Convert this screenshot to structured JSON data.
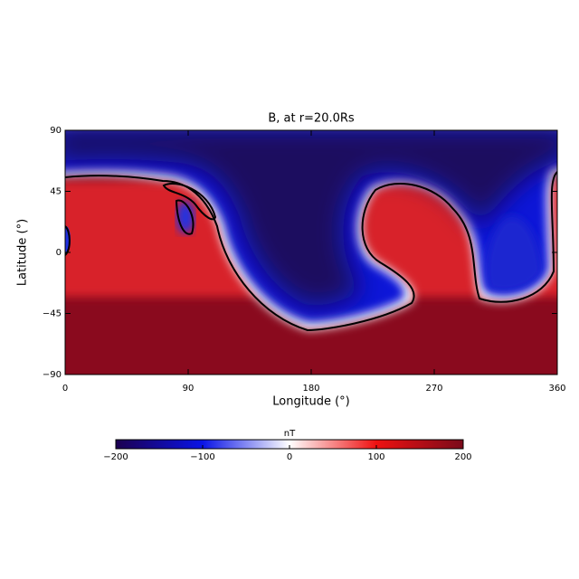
{
  "chart_data": {
    "type": "heatmap",
    "title": "B, at r=20.0Rs",
    "x_label": "Longitude (°)",
    "y_label": "Latitude (°)",
    "xlim": [
      0,
      360
    ],
    "ylim": [
      -90,
      90
    ],
    "xticks": [
      0,
      90,
      180,
      270,
      360
    ],
    "yticks": [
      90,
      45,
      0,
      {
        "value": -45,
        "label": "−45"
      },
      {
        "value": -90,
        "label": "−90"
      }
    ],
    "colorbar": {
      "label": "nT",
      "lim": [
        -200,
        200
      ],
      "ticks": [
        {
          "value": -200,
          "label": "−200"
        },
        {
          "value": -100,
          "label": "−100"
        },
        0,
        100,
        200
      ],
      "colors": [
        "#1c0050",
        "#0a14e6",
        "#ffffff",
        "#ee1111",
        "#7a0a1a"
      ]
    }
  }
}
